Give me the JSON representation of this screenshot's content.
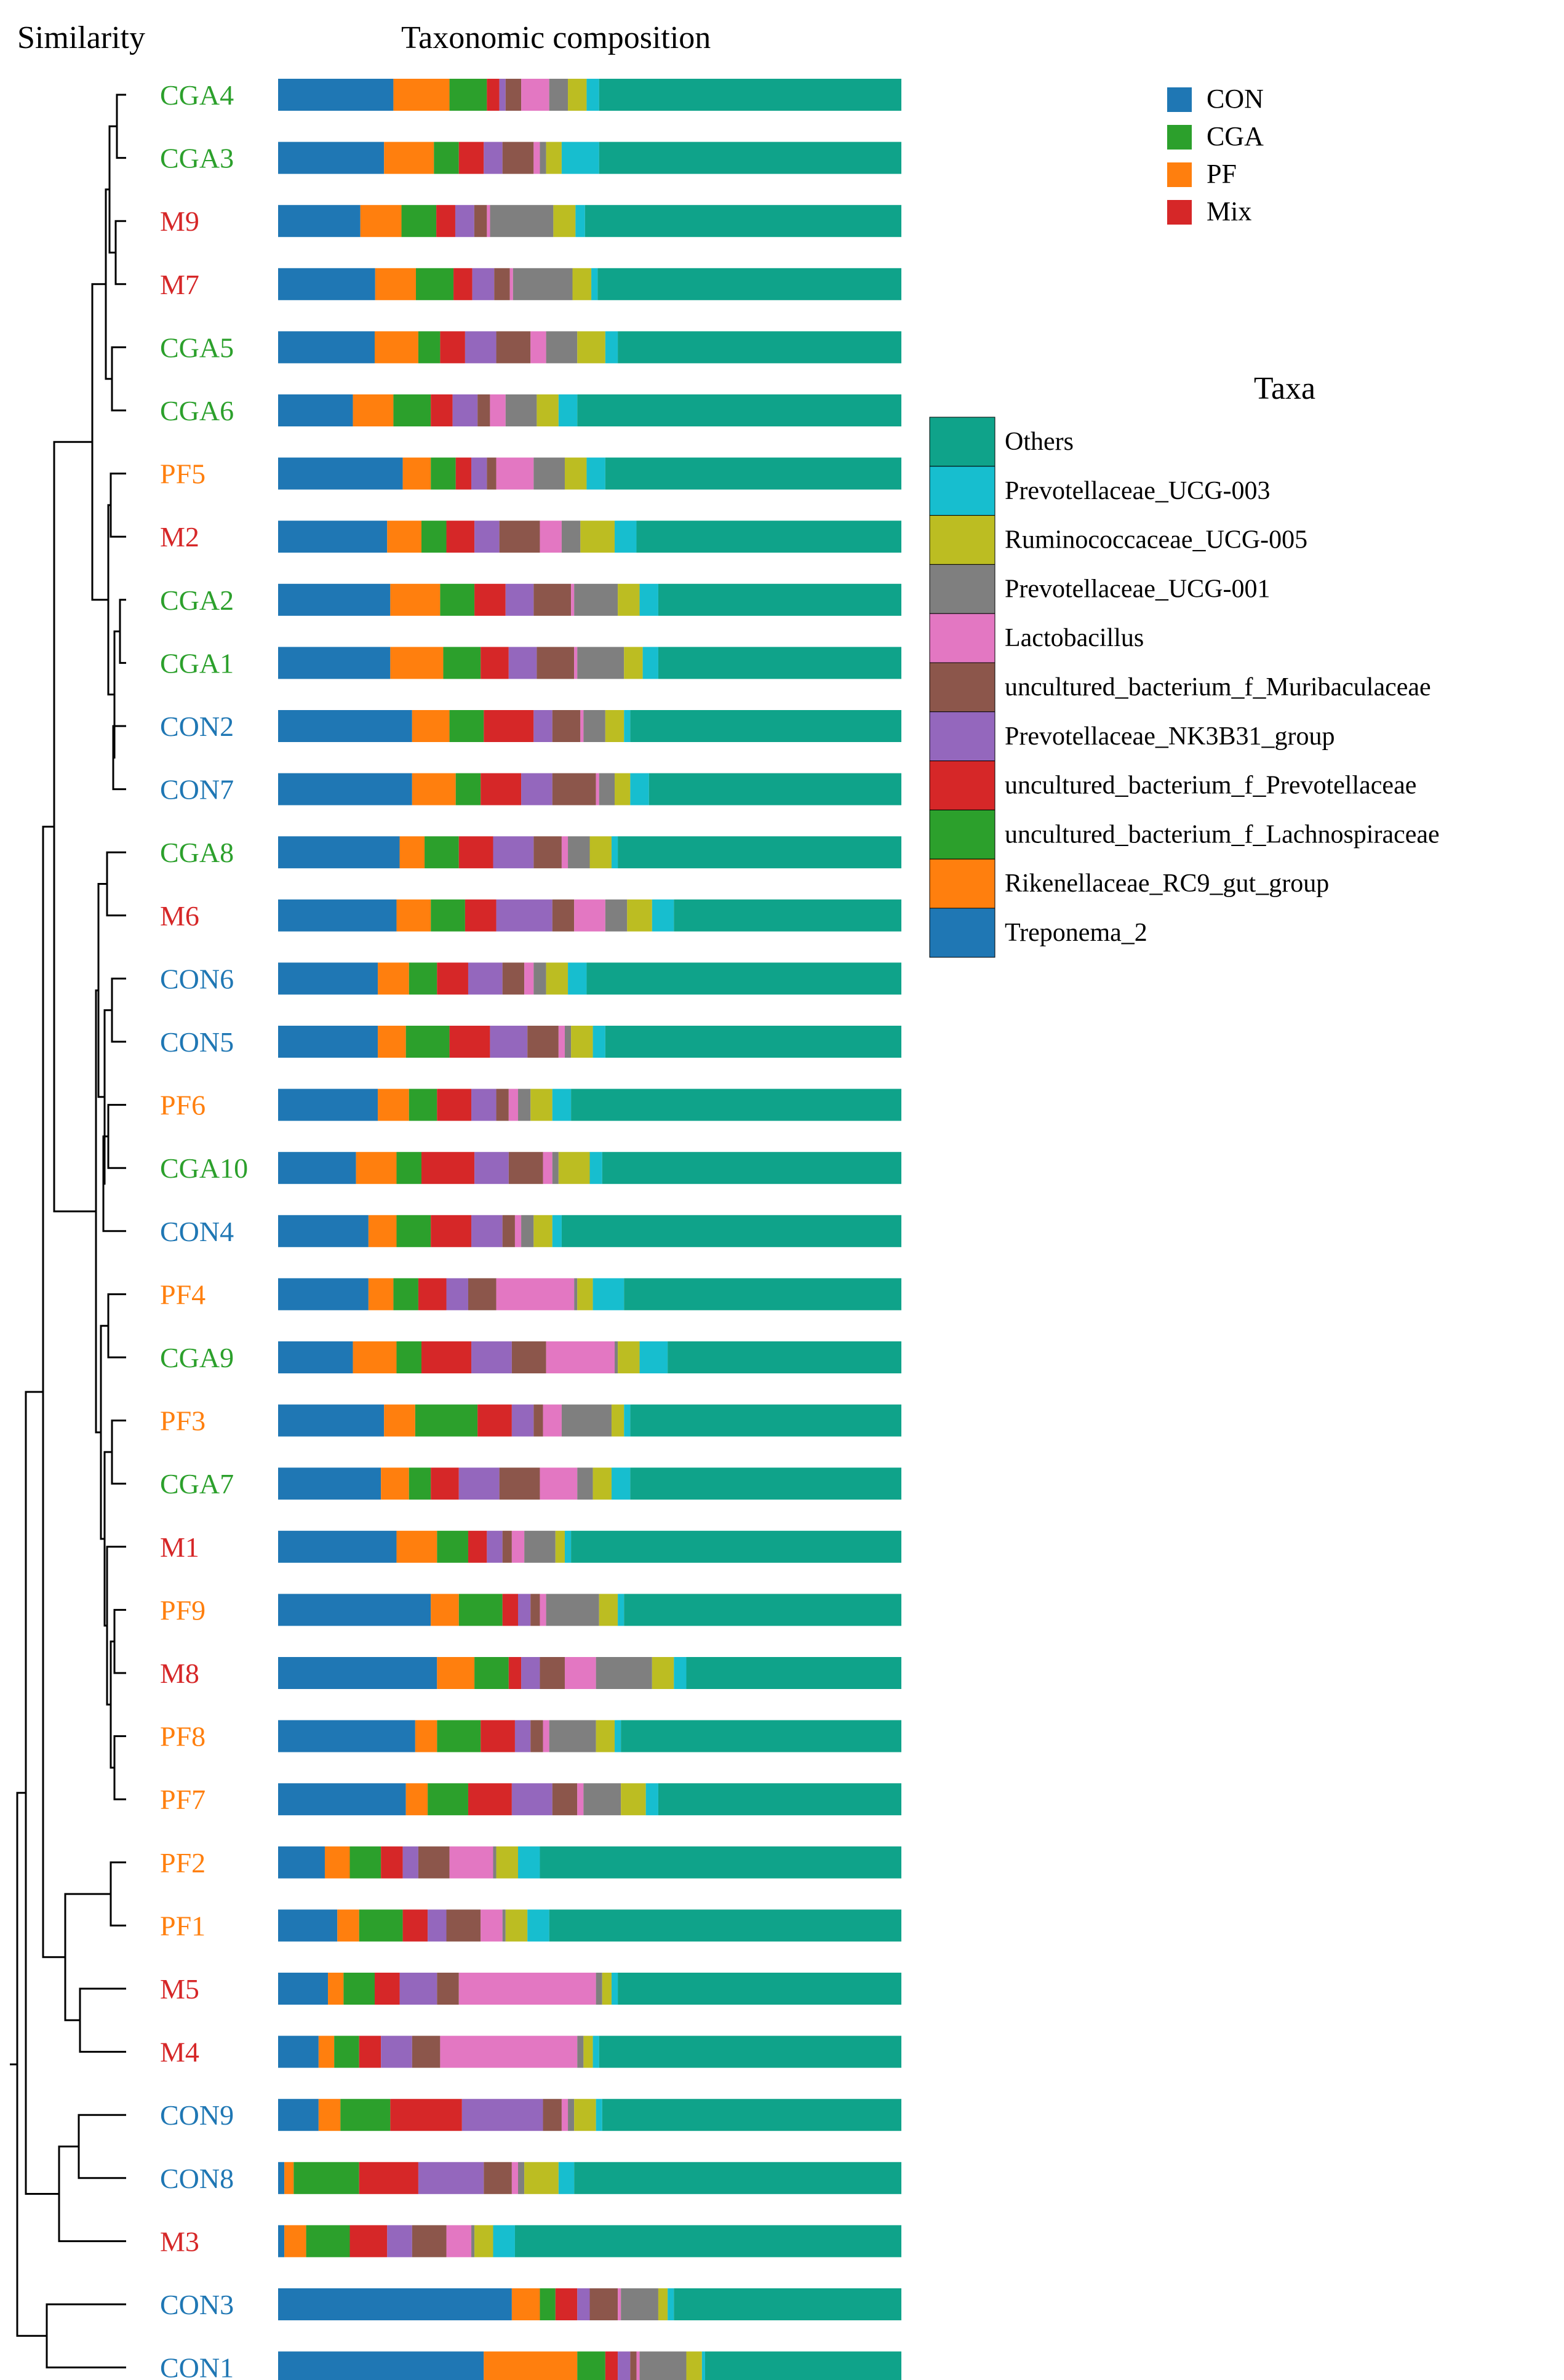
{
  "chart_data": {
    "type": "stacked-bar-with-dendrogram",
    "titles": {
      "dendrogram": "Similarity",
      "bars": "Taxonomic composition"
    },
    "group_legend": {
      "entries": [
        {
          "name": "CON",
          "color": "#1f77b4"
        },
        {
          "name": "CGA",
          "color": "#2ca02c"
        },
        {
          "name": "PF",
          "color": "#ff7f0e"
        },
        {
          "name": "Mix",
          "color": "#d62728"
        }
      ]
    },
    "taxa_legend": {
      "title": "Taxa",
      "order_top_to_bottom": [
        "Others",
        "Prevotellaceae_UCG-003",
        "Ruminococcaceae_UCG-005",
        "Prevotellaceae_UCG-001",
        "Lactobacillus",
        "uncultured_bacterium_f_Muribaculaceae",
        "Prevotellaceae_NK3B31_group",
        "uncultured_bacterium_f_Prevotellaceae",
        "uncultured_bacterium_f_Lachnospiraceae",
        "Rikenellaceae_RC9_gut_group",
        "Treponema_2"
      ]
    },
    "taxa_order": [
      "Treponema_2",
      "Rikenellaceae_RC9_gut_group",
      "uncultured_bacterium_f_Lachnospiraceae",
      "uncultured_bacterium_f_Prevotellaceae",
      "Prevotellaceae_NK3B31_group",
      "uncultured_bacterium_f_Muribaculaceae",
      "Lactobacillus",
      "Prevotellaceae_UCG-001",
      "Ruminococcaceae_UCG-005",
      "Prevotellaceae_UCG-003",
      "Others"
    ],
    "taxa_colors": {
      "Treponema_2": "#1f77b4",
      "Rikenellaceae_RC9_gut_group": "#ff7f0e",
      "uncultured_bacterium_f_Lachnospiraceae": "#2ca02c",
      "uncultured_bacterium_f_Prevotellaceae": "#d62728",
      "Prevotellaceae_NK3B31_group": "#9467bd",
      "uncultured_bacterium_f_Muribaculaceae": "#8c564b",
      "Lactobacillus": "#e377c2",
      "Prevotellaceae_UCG-001": "#7f7f7f",
      "Ruminococcaceae_UCG-005": "#bcbd22",
      "Prevotellaceae_UCG-003": "#17becf",
      "Others": "#0fa38a"
    },
    "group_colors": {
      "CON": "#1f77b4",
      "CGA": "#2ca02c",
      "PF": "#ff7f0e",
      "M": "#d62728"
    },
    "x_range": [
      0,
      1
    ],
    "samples": [
      {
        "name": "CGA4",
        "group": "CGA",
        "values": [
          0.185,
          0.09,
          0.06,
          0.02,
          0.01,
          0.025,
          0.045,
          0.03,
          0.03,
          0.02,
          0.485
        ]
      },
      {
        "name": "CGA3",
        "group": "CGA",
        "values": [
          0.17,
          0.08,
          0.04,
          0.04,
          0.03,
          0.05,
          0.01,
          0.01,
          0.025,
          0.06,
          0.485
        ]
      },
      {
        "name": "M9",
        "group": "M",
        "values": [
          0.13,
          0.065,
          0.055,
          0.03,
          0.03,
          0.02,
          0.005,
          0.1,
          0.035,
          0.015,
          0.5
        ]
      },
      {
        "name": "M7",
        "group": "M",
        "values": [
          0.155,
          0.065,
          0.06,
          0.03,
          0.035,
          0.025,
          0.005,
          0.095,
          0.03,
          0.01,
          0.485
        ]
      },
      {
        "name": "CGA5",
        "group": "CGA",
        "values": [
          0.155,
          0.07,
          0.035,
          0.04,
          0.05,
          0.055,
          0.025,
          0.05,
          0.045,
          0.02,
          0.455
        ]
      },
      {
        "name": "CGA6",
        "group": "CGA",
        "values": [
          0.12,
          0.065,
          0.06,
          0.035,
          0.04,
          0.02,
          0.025,
          0.05,
          0.035,
          0.03,
          0.52
        ]
      },
      {
        "name": "PF5",
        "group": "PF",
        "values": [
          0.2,
          0.045,
          0.04,
          0.025,
          0.025,
          0.015,
          0.06,
          0.05,
          0.035,
          0.03,
          0.475
        ]
      },
      {
        "name": "M2",
        "group": "M",
        "values": [
          0.175,
          0.055,
          0.04,
          0.045,
          0.04,
          0.065,
          0.035,
          0.03,
          0.055,
          0.035,
          0.425
        ]
      },
      {
        "name": "CGA2",
        "group": "CGA",
        "values": [
          0.18,
          0.08,
          0.055,
          0.05,
          0.045,
          0.06,
          0.005,
          0.07,
          0.035,
          0.03,
          0.39
        ]
      },
      {
        "name": "CGA1",
        "group": "CGA",
        "values": [
          0.18,
          0.085,
          0.06,
          0.045,
          0.045,
          0.06,
          0.005,
          0.075,
          0.03,
          0.025,
          0.39
        ]
      },
      {
        "name": "CON2",
        "group": "CON",
        "values": [
          0.215,
          0.06,
          0.055,
          0.08,
          0.03,
          0.045,
          0.005,
          0.035,
          0.03,
          0.01,
          0.435
        ]
      },
      {
        "name": "CON7",
        "group": "CON",
        "values": [
          0.215,
          0.07,
          0.04,
          0.065,
          0.05,
          0.07,
          0.005,
          0.025,
          0.025,
          0.03,
          0.405
        ]
      },
      {
        "name": "CGA8",
        "group": "CGA",
        "values": [
          0.195,
          0.04,
          0.055,
          0.055,
          0.065,
          0.045,
          0.01,
          0.035,
          0.035,
          0.01,
          0.455
        ]
      },
      {
        "name": "M6",
        "group": "M",
        "values": [
          0.19,
          0.055,
          0.055,
          0.05,
          0.09,
          0.035,
          0.05,
          0.035,
          0.04,
          0.035,
          0.365
        ]
      },
      {
        "name": "CON6",
        "group": "CON",
        "values": [
          0.16,
          0.05,
          0.045,
          0.05,
          0.055,
          0.035,
          0.015,
          0.02,
          0.035,
          0.03,
          0.505
        ]
      },
      {
        "name": "CON5",
        "group": "CON",
        "values": [
          0.16,
          0.045,
          0.07,
          0.065,
          0.06,
          0.05,
          0.01,
          0.01,
          0.035,
          0.02,
          0.475
        ]
      },
      {
        "name": "PF6",
        "group": "PF",
        "values": [
          0.16,
          0.05,
          0.045,
          0.055,
          0.04,
          0.02,
          0.015,
          0.02,
          0.035,
          0.03,
          0.53
        ]
      },
      {
        "name": "CGA10",
        "group": "CGA",
        "values": [
          0.125,
          0.065,
          0.04,
          0.085,
          0.055,
          0.055,
          0.015,
          0.01,
          0.05,
          0.02,
          0.48
        ]
      },
      {
        "name": "CON4",
        "group": "CON",
        "values": [
          0.145,
          0.045,
          0.055,
          0.065,
          0.05,
          0.02,
          0.01,
          0.02,
          0.03,
          0.015,
          0.545
        ]
      },
      {
        "name": "PF4",
        "group": "PF",
        "values": [
          0.145,
          0.04,
          0.04,
          0.045,
          0.035,
          0.045,
          0.125,
          0.005,
          0.025,
          0.05,
          0.445
        ]
      },
      {
        "name": "CGA9",
        "group": "CGA",
        "values": [
          0.12,
          0.07,
          0.04,
          0.08,
          0.065,
          0.055,
          0.11,
          0.005,
          0.035,
          0.045,
          0.375
        ]
      },
      {
        "name": "PF3",
        "group": "PF",
        "values": [
          0.17,
          0.05,
          0.1,
          0.055,
          0.035,
          0.015,
          0.03,
          0.08,
          0.02,
          0.01,
          0.435
        ]
      },
      {
        "name": "CGA7",
        "group": "CGA",
        "values": [
          0.165,
          0.045,
          0.035,
          0.045,
          0.065,
          0.065,
          0.06,
          0.025,
          0.03,
          0.03,
          0.435
        ]
      },
      {
        "name": "M1",
        "group": "M",
        "values": [
          0.19,
          0.065,
          0.05,
          0.03,
          0.025,
          0.015,
          0.02,
          0.05,
          0.015,
          0.01,
          0.53
        ]
      },
      {
        "name": "PF9",
        "group": "PF",
        "values": [
          0.245,
          0.045,
          0.07,
          0.025,
          0.02,
          0.015,
          0.01,
          0.085,
          0.03,
          0.01,
          0.445
        ]
      },
      {
        "name": "M8",
        "group": "M",
        "values": [
          0.255,
          0.06,
          0.055,
          0.02,
          0.03,
          0.04,
          0.05,
          0.09,
          0.035,
          0.02,
          0.345
        ]
      },
      {
        "name": "PF8",
        "group": "PF",
        "values": [
          0.22,
          0.035,
          0.07,
          0.055,
          0.025,
          0.02,
          0.01,
          0.075,
          0.03,
          0.01,
          0.45
        ]
      },
      {
        "name": "PF7",
        "group": "PF",
        "values": [
          0.205,
          0.035,
          0.065,
          0.07,
          0.065,
          0.04,
          0.01,
          0.06,
          0.04,
          0.02,
          0.39
        ]
      },
      {
        "name": "PF2",
        "group": "PF",
        "values": [
          0.075,
          0.04,
          0.05,
          0.035,
          0.025,
          0.05,
          0.07,
          0.005,
          0.035,
          0.035,
          0.58
        ]
      },
      {
        "name": "PF1",
        "group": "PF",
        "values": [
          0.095,
          0.035,
          0.07,
          0.04,
          0.03,
          0.055,
          0.035,
          0.005,
          0.035,
          0.035,
          0.565
        ]
      },
      {
        "name": "M5",
        "group": "M",
        "values": [
          0.08,
          0.025,
          0.05,
          0.04,
          0.06,
          0.035,
          0.22,
          0.01,
          0.015,
          0.01,
          0.455
        ]
      },
      {
        "name": "M4",
        "group": "M",
        "values": [
          0.065,
          0.025,
          0.04,
          0.035,
          0.05,
          0.045,
          0.22,
          0.01,
          0.015,
          0.01,
          0.485
        ]
      },
      {
        "name": "CON9",
        "group": "CON",
        "values": [
          0.065,
          0.035,
          0.08,
          0.115,
          0.13,
          0.03,
          0.01,
          0.01,
          0.035,
          0.01,
          0.48
        ]
      },
      {
        "name": "CON8",
        "group": "CON",
        "values": [
          0.01,
          0.015,
          0.105,
          0.095,
          0.105,
          0.045,
          0.01,
          0.01,
          0.055,
          0.025,
          0.525
        ]
      },
      {
        "name": "M3",
        "group": "M",
        "values": [
          0.01,
          0.035,
          0.07,
          0.06,
          0.04,
          0.055,
          0.04,
          0.005,
          0.03,
          0.035,
          0.62
        ]
      },
      {
        "name": "CON3",
        "group": "CON",
        "values": [
          0.375,
          0.045,
          0.025,
          0.035,
          0.02,
          0.045,
          0.005,
          0.06,
          0.015,
          0.01,
          0.365
        ]
      },
      {
        "name": "CON1",
        "group": "CON",
        "values": [
          0.33,
          0.15,
          0.045,
          0.02,
          0.02,
          0.01,
          0.005,
          0.075,
          0.025,
          0.005,
          0.315
        ]
      }
    ]
  }
}
